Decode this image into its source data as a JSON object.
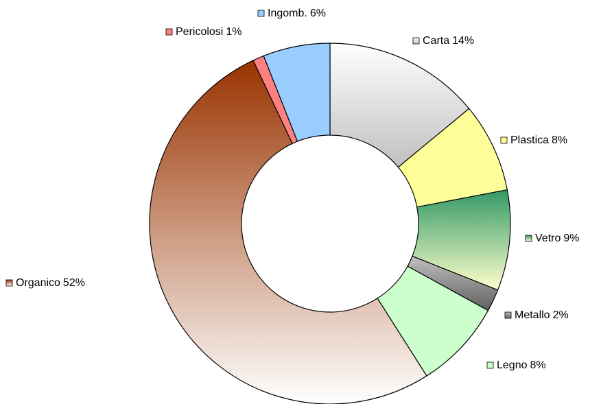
{
  "chart_data": {
    "type": "donut",
    "categories": [
      "Carta",
      "Plastica",
      "Vetro",
      "Metallo",
      "Legno",
      "Organico",
      "Pericolosi",
      "Ingomb."
    ],
    "values": [
      14,
      8,
      9,
      2,
      8,
      52,
      1,
      6
    ],
    "value_labels": [
      "14%",
      "8%",
      "9%",
      "2%",
      "8%",
      "52%",
      "1%",
      "6%"
    ],
    "colors": [
      [
        "#ffffff",
        "#c0c0c0"
      ],
      [
        "#ffff99",
        "#ffff99"
      ],
      [
        "#339966",
        "#ffffcc"
      ],
      [
        "#c0c0c0",
        "#606060"
      ],
      [
        "#ccffcc",
        "#ccffcc"
      ],
      [
        "#993300",
        "#ffffff"
      ],
      [
        "#ff8080",
        "#ff8080"
      ],
      [
        "#99ccff",
        "#99ccff"
      ]
    ]
  }
}
